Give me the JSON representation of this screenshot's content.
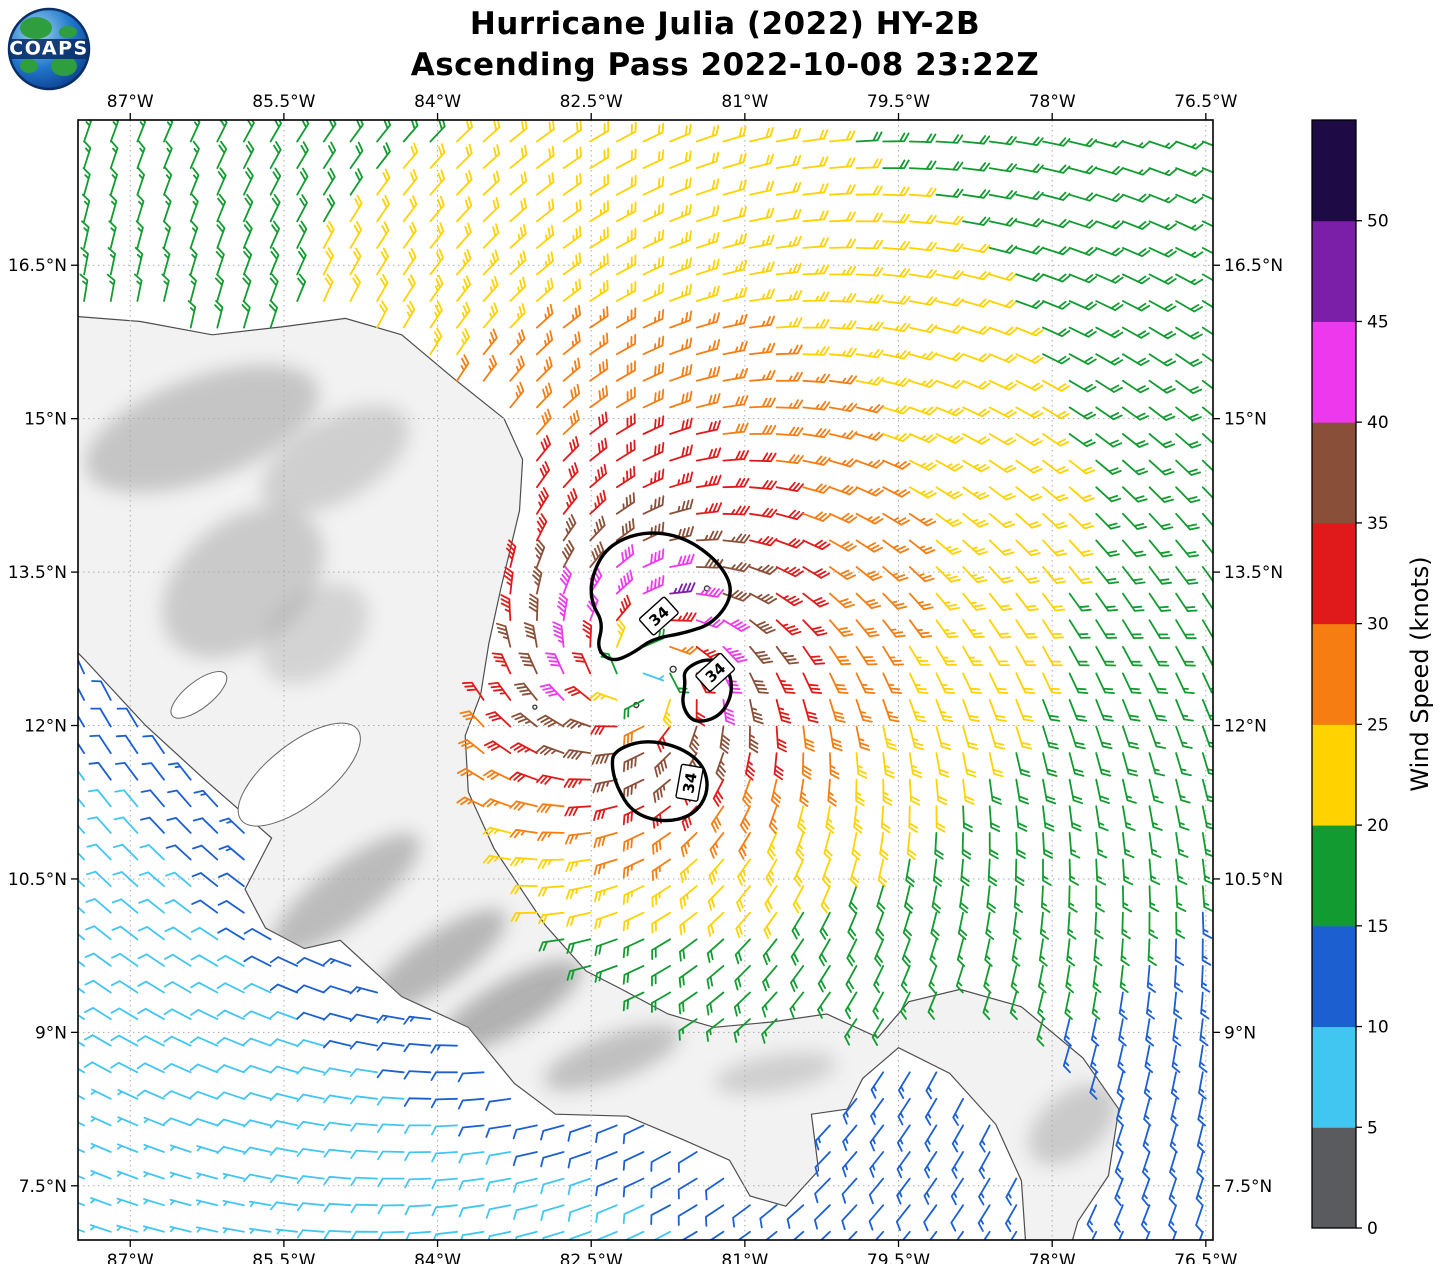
{
  "header": {
    "title_line1": "Hurricane Julia (2022) HY-2B",
    "title_line2": "Ascending Pass 2022-10-08 23:22Z",
    "logo_text": "COAPS"
  },
  "axes": {
    "x_tick_labels": [
      "87°W",
      "85.5°W",
      "84°W",
      "82.5°W",
      "81°W",
      "79.5°W",
      "78°W",
      "76.5°W"
    ],
    "x_tick_lons": [
      -87,
      -85.5,
      -84,
      -82.5,
      -81,
      -79.5,
      -78,
      -76.5
    ],
    "y_tick_labels": [
      "16.5°N",
      "15°N",
      "13.5°N",
      "12°N",
      "10.5°N",
      "9°N",
      "7.5°N"
    ],
    "y_tick_lats": [
      16.5,
      15,
      13.5,
      12,
      10.5,
      9,
      7.5
    ]
  },
  "colorbar": {
    "label": "Wind Speed (knots)",
    "tick_labels": [
      "0",
      "5",
      "10",
      "15",
      "20",
      "25",
      "30",
      "35",
      "40",
      "45",
      "50"
    ],
    "tick_values": [
      0,
      5,
      10,
      15,
      20,
      25,
      30,
      35,
      40,
      45,
      50
    ],
    "colors": [
      "#595b5e",
      "#41c6f2",
      "#1b5fd1",
      "#129b30",
      "#ffd200",
      "#f57d12",
      "#e01a1a",
      "#8a4f38",
      "#ee38ee",
      "#7c1fa8",
      "#1e0b45"
    ]
  },
  "chart_data": {
    "type": "vector_field_map",
    "title": "Hurricane Julia (2022) HY-2B — Ascending Pass 2022-10-08 23:22Z",
    "units": "knots",
    "lon_range": [
      -87.51,
      -76.43
    ],
    "lat_range": [
      6.97,
      17.92
    ],
    "storm_center": {
      "lon": -82.0,
      "lat": 12.5
    },
    "max_wind_kt": 43,
    "radius_max_wind_deg": 0.85,
    "rotation": "counterclockwise",
    "inflow_angle_deg": 25,
    "grid_spacing_deg": 0.26,
    "speed_bin_edges": [
      0,
      5,
      10,
      15,
      20,
      25,
      30,
      35,
      40,
      45,
      50,
      55
    ],
    "contour_label": "34",
    "contours": [
      {
        "label": "34",
        "label_at": [
          -81.84,
          13.07
        ],
        "label_rot": -42,
        "points": [
          [
            -82.5,
            13.45
          ],
          [
            -82.35,
            13.75
          ],
          [
            -82.0,
            13.9
          ],
          [
            -81.6,
            13.85
          ],
          [
            -81.25,
            13.6
          ],
          [
            -81.1,
            13.3
          ],
          [
            -81.3,
            13.0
          ],
          [
            -81.6,
            12.9
          ],
          [
            -81.9,
            12.85
          ],
          [
            -82.1,
            12.7
          ],
          [
            -82.3,
            12.62
          ],
          [
            -82.45,
            12.75
          ],
          [
            -82.38,
            13.0
          ],
          [
            -82.5,
            13.2
          ]
        ]
      },
      {
        "label": "34",
        "label_at": [
          -81.29,
          12.52
        ],
        "label_rot": -42,
        "points": [
          [
            -81.6,
            12.55
          ],
          [
            -81.35,
            12.67
          ],
          [
            -81.15,
            12.55
          ],
          [
            -81.12,
            12.3
          ],
          [
            -81.25,
            12.08
          ],
          [
            -81.5,
            12.02
          ],
          [
            -81.62,
            12.2
          ],
          [
            -81.58,
            12.4
          ]
        ]
      },
      {
        "label": "34",
        "label_at": [
          -81.54,
          11.44
        ],
        "label_rot": -80,
        "points": [
          [
            -82.28,
            11.75
          ],
          [
            -82.0,
            11.86
          ],
          [
            -81.65,
            11.8
          ],
          [
            -81.4,
            11.62
          ],
          [
            -81.35,
            11.35
          ],
          [
            -81.5,
            11.12
          ],
          [
            -81.8,
            11.05
          ],
          [
            -82.1,
            11.15
          ],
          [
            -82.25,
            11.4
          ],
          [
            -82.3,
            11.6
          ]
        ]
      }
    ],
    "land_polygon": [
      [
        -87.8,
        16.02
      ],
      [
        -86.9,
        15.95
      ],
      [
        -86.2,
        15.82
      ],
      [
        -85.5,
        15.9
      ],
      [
        -84.9,
        15.98
      ],
      [
        -84.35,
        15.82
      ],
      [
        -83.85,
        15.4
      ],
      [
        -83.35,
        15.0
      ],
      [
        -83.17,
        14.6
      ],
      [
        -83.2,
        14.1
      ],
      [
        -83.38,
        13.35
      ],
      [
        -83.5,
        12.8
      ],
      [
        -83.58,
        12.3
      ],
      [
        -83.73,
        11.9
      ],
      [
        -83.7,
        11.35
      ],
      [
        -83.45,
        10.8
      ],
      [
        -82.95,
        10.05
      ],
      [
        -82.55,
        9.6
      ],
      [
        -82.2,
        9.42
      ],
      [
        -81.75,
        9.18
      ],
      [
        -81.3,
        9.05
      ],
      [
        -80.75,
        9.1
      ],
      [
        -80.2,
        9.18
      ],
      [
        -79.7,
        8.95
      ],
      [
        -79.4,
        9.3
      ],
      [
        -78.9,
        9.42
      ],
      [
        -78.3,
        9.25
      ],
      [
        -77.7,
        8.75
      ],
      [
        -77.35,
        8.25
      ],
      [
        -77.45,
        7.6
      ],
      [
        -77.75,
        7.15
      ],
      [
        -77.85,
        6.8
      ],
      [
        -78.25,
        6.8
      ],
      [
        -78.3,
        7.55
      ],
      [
        -78.55,
        8.1
      ],
      [
        -79.0,
        8.6
      ],
      [
        -79.5,
        8.85
      ],
      [
        -79.85,
        8.55
      ],
      [
        -80.0,
        8.25
      ],
      [
        -80.35,
        8.2
      ],
      [
        -80.28,
        7.65
      ],
      [
        -80.6,
        7.3
      ],
      [
        -80.95,
        7.4
      ],
      [
        -81.15,
        7.75
      ],
      [
        -81.6,
        7.95
      ],
      [
        -82.15,
        8.18
      ],
      [
        -82.85,
        8.2
      ],
      [
        -83.25,
        8.5
      ],
      [
        -83.7,
        9.05
      ],
      [
        -84.35,
        9.35
      ],
      [
        -84.95,
        9.9
      ],
      [
        -85.3,
        9.82
      ],
      [
        -85.68,
        10.02
      ],
      [
        -85.88,
        10.4
      ],
      [
        -85.62,
        10.9
      ],
      [
        -86.25,
        11.45
      ],
      [
        -86.85,
        12.0
      ],
      [
        -87.45,
        12.65
      ],
      [
        -87.8,
        13.0
      ]
    ],
    "lakes": [
      {
        "lon": -85.35,
        "lat": 11.52,
        "rx": 0.72,
        "ry": 0.3,
        "rot": -38
      },
      {
        "lon": -86.33,
        "lat": 12.3,
        "rx": 0.33,
        "ry": 0.13,
        "rot": -38
      }
    ],
    "islands": [
      {
        "lon": -81.7,
        "lat": 12.55,
        "r": 3
      },
      {
        "lon": -81.37,
        "lat": 13.34,
        "r": 2.5
      },
      {
        "lon": -82.06,
        "lat": 12.2,
        "r": 2.5
      },
      {
        "lon": -83.05,
        "lat": 12.18,
        "r": 2
      }
    ],
    "terrain_shading": [
      {
        "lon": -86.3,
        "lat": 14.9,
        "rx": 1.2,
        "ry": 0.5,
        "rot": -20,
        "op": 0.45
      },
      {
        "lon": -85.0,
        "lat": 14.6,
        "rx": 0.8,
        "ry": 0.4,
        "rot": -30,
        "op": 0.35
      },
      {
        "lon": -85.9,
        "lat": 13.4,
        "rx": 0.9,
        "ry": 0.6,
        "rot": -40,
        "op": 0.4
      },
      {
        "lon": -85.2,
        "lat": 12.9,
        "rx": 0.6,
        "ry": 0.4,
        "rot": -40,
        "op": 0.3
      },
      {
        "lon": -84.9,
        "lat": 10.35,
        "rx": 0.9,
        "ry": 0.28,
        "rot": -38,
        "op": 0.55
      },
      {
        "lon": -84.0,
        "lat": 9.7,
        "rx": 0.8,
        "ry": 0.25,
        "rot": -35,
        "op": 0.6
      },
      {
        "lon": -83.3,
        "lat": 9.25,
        "rx": 0.8,
        "ry": 0.25,
        "rot": -30,
        "op": 0.65
      },
      {
        "lon": -82.3,
        "lat": 8.75,
        "rx": 0.7,
        "ry": 0.22,
        "rot": -20,
        "op": 0.5
      },
      {
        "lon": -80.7,
        "lat": 8.6,
        "rx": 0.6,
        "ry": 0.18,
        "rot": -10,
        "op": 0.35
      },
      {
        "lon": -77.8,
        "lat": 8.1,
        "rx": 0.5,
        "ry": 0.3,
        "rot": -40,
        "op": 0.4
      }
    ]
  }
}
